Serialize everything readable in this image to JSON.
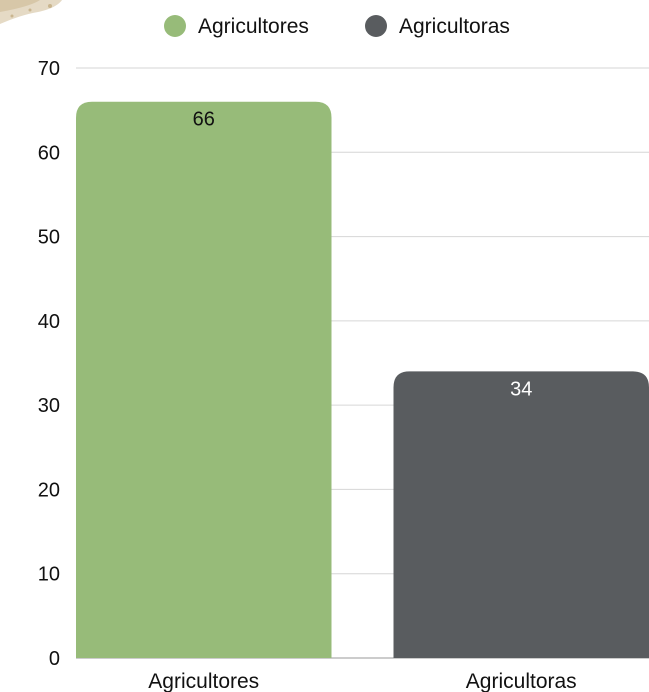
{
  "chart_data": {
    "type": "bar",
    "categories": [
      "Agricultores",
      "Agricultoras"
    ],
    "values": [
      66,
      34
    ],
    "bar_colors": [
      "#97bb79",
      "#595c5f"
    ],
    "data_label_colors": [
      "#111111",
      "#ffffff"
    ],
    "ylim": [
      0,
      70
    ],
    "yticks": [
      0,
      10,
      20,
      30,
      40,
      50,
      60,
      70
    ],
    "grid": true,
    "legend_position": "top-center",
    "legend": [
      {
        "label": "Agricultores",
        "color": "#97bb79"
      },
      {
        "label": "Agricultoras",
        "color": "#595c5f"
      }
    ],
    "title": "",
    "xlabel": "",
    "ylabel": ""
  },
  "colors": {
    "gridline": "#d6d6d6",
    "axis": "#999999",
    "decoration": "#d9cbb0"
  }
}
